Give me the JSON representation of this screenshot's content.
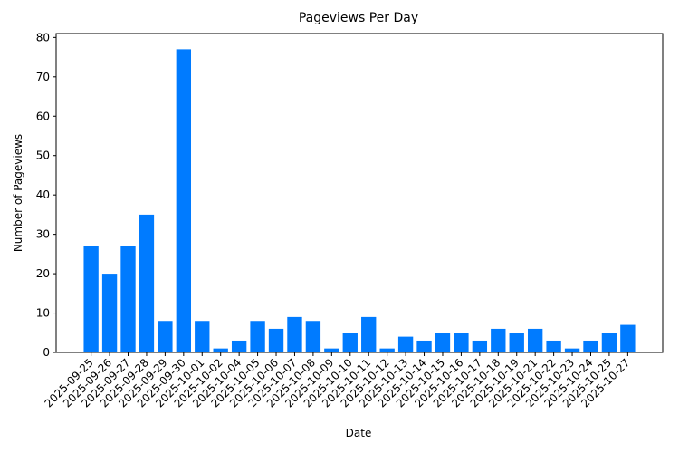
{
  "chart_data": {
    "type": "bar",
    "title": "Pageviews Per Day",
    "x_label": "Date",
    "y_label": "Number of Pageviews",
    "categories": [
      "2025-09-25",
      "2025-09-26",
      "2025-09-27",
      "2025-09-28",
      "2025-09-29",
      "2025-09-30",
      "2025-10-01",
      "2025-10-02",
      "2025-10-04",
      "2025-10-05",
      "2025-10-06",
      "2025-10-07",
      "2025-10-08",
      "2025-10-09",
      "2025-10-10",
      "2025-10-11",
      "2025-10-12",
      "2025-10-13",
      "2025-10-14",
      "2025-10-15",
      "2025-10-16",
      "2025-10-17",
      "2025-10-18",
      "2025-10-19",
      "2025-10-21",
      "2025-10-22",
      "2025-10-23",
      "2025-10-24",
      "2025-10-25",
      "2025-10-27"
    ],
    "values": [
      27,
      20,
      27,
      35,
      8,
      77,
      8,
      1,
      3,
      8,
      6,
      9,
      8,
      1,
      5,
      9,
      1,
      4,
      3,
      5,
      5,
      3,
      6,
      5,
      6,
      3,
      1,
      3,
      5,
      7
    ],
    "color": "#007bff",
    "ylim": [
      0,
      81
    ],
    "yticks": [
      0,
      10,
      20,
      30,
      40,
      50,
      60,
      70,
      80
    ],
    "grid": false
  }
}
